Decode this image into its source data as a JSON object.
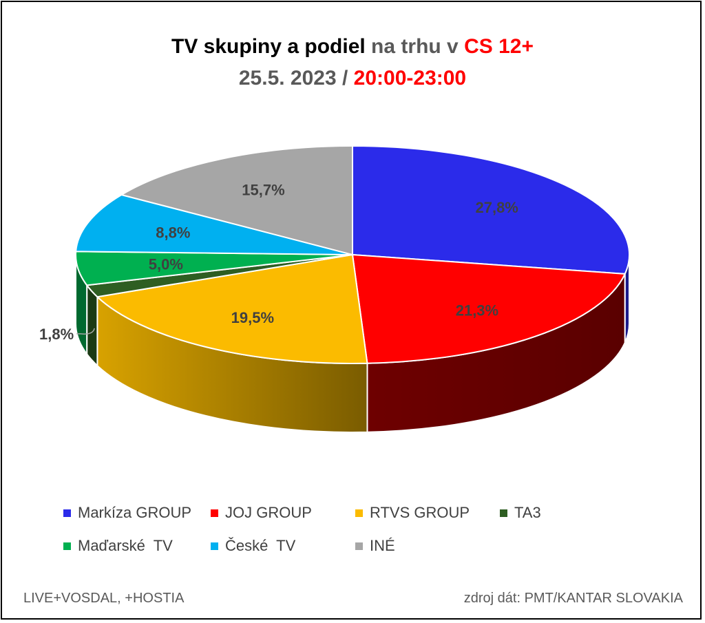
{
  "title": {
    "line1_part1": "TV skupiny a podiel",
    "line1_part2": " na trhu v ",
    "line1_part3": "CS 12+",
    "line2_part1": "25.5. 2023 / ",
    "line2_part2": "20:00-23:00"
  },
  "chart_data": {
    "type": "pie",
    "style": "3d",
    "categories": [
      "Markíza GROUP",
      "JOJ GROUP",
      "RTVS GROUP",
      "TA3",
      "Maďarské  TV",
      "České  TV",
      "INÉ"
    ],
    "values": [
      27.8,
      21.3,
      19.5,
      1.8,
      5.0,
      8.8,
      15.7
    ],
    "labels": [
      "27,8%",
      "21,3%",
      "19,5%",
      "1,8%",
      "5,0%",
      "8,8%",
      "15,7%"
    ],
    "colors": [
      "#2b2bea",
      "#ff0000",
      "#fbbb00",
      "#2e5e22",
      "#00b050",
      "#00b0f0",
      "#a6a6a6"
    ],
    "side_colors": [
      "#1a1a8a",
      "#660000",
      "#7a5a00",
      "#1b3a14",
      "#00692f",
      "#006a90",
      "#636363"
    ],
    "legend_position": "bottom"
  },
  "footer": {
    "left": "LIVE+VOSDAL, +HOSTIA",
    "right": "zdroj dát: PMT/KANTAR SLOVAKIA"
  }
}
